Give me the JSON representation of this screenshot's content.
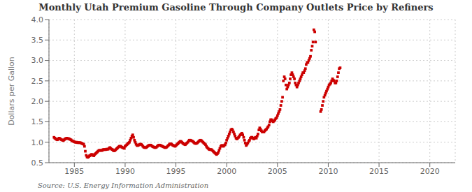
{
  "chart_data": {
    "type": "scatter",
    "title": "Monthly Utah Premium Gasoline Through Company Outlets Price by Refiners",
    "y_label": "Dollars per Gallon",
    "annotations": [
      "Source: U.S. Energy Information Administration"
    ],
    "color": "#CC0000",
    "marker": "square",
    "grid": true,
    "xlim": [
      1982.5,
      2022.5
    ],
    "ylim": [
      0.5,
      4.0
    ],
    "xticks": [
      1985,
      1990,
      1995,
      2000,
      2005,
      2010,
      2015,
      2020
    ],
    "yticks": [
      0.5,
      {
        "value": 1.0,
        "label": "1.0"
      },
      1.5,
      {
        "value": 2.0,
        "label": "2.0"
      },
      2.5,
      {
        "value": 3.0,
        "label": "3.0"
      },
      3.5,
      {
        "value": 4.0,
        "label": "4.0"
      }
    ],
    "x": [
      1983.0,
      1983.08,
      1983.17,
      1983.25,
      1983.33,
      1983.42,
      1983.5,
      1983.58,
      1983.67,
      1983.75,
      1983.83,
      1983.92,
      1984.0,
      1984.08,
      1984.17,
      1984.25,
      1984.33,
      1984.42,
      1984.5,
      1984.58,
      1984.67,
      1984.75,
      1984.83,
      1984.92,
      1985.0,
      1985.08,
      1985.17,
      1985.25,
      1985.33,
      1985.42,
      1985.5,
      1985.58,
      1985.67,
      1985.75,
      1985.83,
      1985.92,
      1986.0,
      1986.08,
      1986.17,
      1986.25,
      1986.33,
      1986.42,
      1986.5,
      1986.58,
      1986.67,
      1986.75,
      1986.83,
      1986.92,
      1987.0,
      1987.08,
      1987.17,
      1987.25,
      1987.33,
      1987.42,
      1987.5,
      1987.58,
      1987.67,
      1987.75,
      1987.83,
      1987.92,
      1988.0,
      1988.08,
      1988.17,
      1988.25,
      1988.33,
      1988.42,
      1988.5,
      1988.58,
      1988.67,
      1988.75,
      1988.83,
      1988.92,
      1989.0,
      1989.08,
      1989.17,
      1989.25,
      1989.33,
      1989.42,
      1989.5,
      1989.58,
      1989.67,
      1989.75,
      1989.83,
      1989.92,
      1990.0,
      1990.08,
      1990.17,
      1990.25,
      1990.33,
      1990.42,
      1990.5,
      1990.58,
      1990.67,
      1990.75,
      1990.83,
      1990.92,
      1991.0,
      1991.08,
      1991.17,
      1991.25,
      1991.33,
      1991.42,
      1991.5,
      1991.58,
      1991.67,
      1991.75,
      1991.83,
      1991.92,
      1992.0,
      1992.08,
      1992.17,
      1992.25,
      1992.33,
      1992.42,
      1992.5,
      1992.58,
      1992.67,
      1992.75,
      1992.83,
      1992.92,
      1993.0,
      1993.08,
      1993.17,
      1993.25,
      1993.33,
      1993.42,
      1993.5,
      1993.58,
      1993.67,
      1993.75,
      1993.83,
      1993.92,
      1994.0,
      1994.08,
      1994.17,
      1994.25,
      1994.33,
      1994.42,
      1994.5,
      1994.58,
      1994.67,
      1994.75,
      1994.83,
      1994.92,
      1995.0,
      1995.08,
      1995.17,
      1995.25,
      1995.33,
      1995.42,
      1995.5,
      1995.58,
      1995.67,
      1995.75,
      1995.83,
      1995.92,
      1996.0,
      1996.08,
      1996.17,
      1996.25,
      1996.33,
      1996.42,
      1996.5,
      1996.58,
      1996.67,
      1996.75,
      1996.83,
      1996.92,
      1997.0,
      1997.08,
      1997.17,
      1997.25,
      1997.33,
      1997.42,
      1997.5,
      1997.58,
      1997.67,
      1997.75,
      1997.83,
      1997.92,
      1998.0,
      1998.08,
      1998.17,
      1998.25,
      1998.33,
      1998.42,
      1998.5,
      1998.58,
      1998.67,
      1998.75,
      1998.83,
      1998.92,
      1999.0,
      1999.08,
      1999.17,
      1999.25,
      1999.33,
      1999.42,
      1999.5,
      1999.58,
      1999.67,
      1999.75,
      1999.83,
      1999.92,
      2000.0,
      2000.08,
      2000.17,
      2000.25,
      2000.33,
      2000.42,
      2000.5,
      2000.58,
      2000.67,
      2000.75,
      2000.83,
      2000.92,
      2001.0,
      2001.08,
      2001.17,
      2001.25,
      2001.33,
      2001.42,
      2001.5,
      2001.58,
      2001.67,
      2001.75,
      2001.83,
      2001.92,
      2002.0,
      2002.08,
      2002.17,
      2002.25,
      2002.33,
      2002.42,
      2002.5,
      2002.58,
      2002.67,
      2002.75,
      2002.83,
      2002.92,
      2003.0,
      2003.08,
      2003.17,
      2003.25,
      2003.33,
      2003.42,
      2003.5,
      2003.58,
      2003.67,
      2003.75,
      2003.83,
      2003.92,
      2004.0,
      2004.08,
      2004.17,
      2004.25,
      2004.33,
      2004.42,
      2004.5,
      2004.58,
      2004.67,
      2004.75,
      2004.83,
      2004.92,
      2005.0,
      2005.08,
      2005.17,
      2005.25,
      2005.33,
      2005.42,
      2005.5,
      2005.58,
      2005.67,
      2005.75,
      2005.83,
      2005.92,
      2006.0,
      2006.08,
      2006.17,
      2006.25,
      2006.33,
      2006.42,
      2006.5,
      2006.58,
      2006.67,
      2006.75,
      2006.83,
      2006.92,
      2007.0,
      2007.08,
      2007.17,
      2007.25,
      2007.33,
      2007.42,
      2007.5,
      2007.58,
      2007.67,
      2007.75,
      2007.83,
      2007.92,
      2008.0,
      2008.08,
      2008.17,
      2008.25,
      2008.33,
      2008.42,
      2008.5,
      2008.58,
      2008.67,
      2008.75,
      2009.25,
      2009.33,
      2009.42,
      2009.5,
      2009.58,
      2009.67,
      2009.75,
      2009.83,
      2009.92,
      2010.0,
      2010.08,
      2010.17,
      2010.25,
      2010.33,
      2010.42,
      2010.5,
      2010.58,
      2010.67,
      2010.75,
      2010.83,
      2010.92,
      2011.0,
      2011.08,
      2011.17
    ],
    "values": [
      1.12,
      1.1,
      1.08,
      1.07,
      1.06,
      1.08,
      1.1,
      1.09,
      1.07,
      1.06,
      1.05,
      1.04,
      1.06,
      1.08,
      1.09,
      1.1,
      1.09,
      1.09,
      1.08,
      1.07,
      1.06,
      1.04,
      1.03,
      1.02,
      1.01,
      1.0,
      1.0,
      1.0,
      0.99,
      0.99,
      0.99,
      0.99,
      0.98,
      0.97,
      0.96,
      0.95,
      0.9,
      0.78,
      0.68,
      0.64,
      0.63,
      0.65,
      0.67,
      0.68,
      0.7,
      0.7,
      0.68,
      0.67,
      0.7,
      0.72,
      0.74,
      0.76,
      0.78,
      0.8,
      0.8,
      0.8,
      0.8,
      0.8,
      0.82,
      0.82,
      0.82,
      0.82,
      0.83,
      0.83,
      0.83,
      0.85,
      0.87,
      0.85,
      0.83,
      0.82,
      0.8,
      0.79,
      0.8,
      0.82,
      0.84,
      0.86,
      0.88,
      0.9,
      0.9,
      0.9,
      0.88,
      0.87,
      0.86,
      0.85,
      0.9,
      0.92,
      0.94,
      0.96,
      0.98,
      1.0,
      1.05,
      1.1,
      1.15,
      1.18,
      1.12,
      1.05,
      1.0,
      0.95,
      0.92,
      0.92,
      0.93,
      0.95,
      0.95,
      0.95,
      0.93,
      0.9,
      0.88,
      0.87,
      0.87,
      0.87,
      0.89,
      0.91,
      0.92,
      0.93,
      0.93,
      0.92,
      0.9,
      0.89,
      0.88,
      0.87,
      0.87,
      0.88,
      0.9,
      0.92,
      0.93,
      0.93,
      0.92,
      0.91,
      0.9,
      0.89,
      0.88,
      0.87,
      0.87,
      0.88,
      0.9,
      0.92,
      0.94,
      0.96,
      0.96,
      0.95,
      0.93,
      0.92,
      0.91,
      0.9,
      0.92,
      0.94,
      0.96,
      0.98,
      1.0,
      1.02,
      1.02,
      1.0,
      0.98,
      0.96,
      0.95,
      0.94,
      0.96,
      0.98,
      1.0,
      1.03,
      1.05,
      1.05,
      1.04,
      1.03,
      1.02,
      1.0,
      0.98,
      0.97,
      0.97,
      0.98,
      1.0,
      1.02,
      1.04,
      1.05,
      1.04,
      1.02,
      1.0,
      0.98,
      0.96,
      0.94,
      0.9,
      0.87,
      0.85,
      0.83,
      0.82,
      0.82,
      0.82,
      0.8,
      0.78,
      0.76,
      0.74,
      0.72,
      0.7,
      0.72,
      0.75,
      0.8,
      0.85,
      0.9,
      0.92,
      0.92,
      0.9,
      0.92,
      0.94,
      0.98,
      1.05,
      1.1,
      1.15,
      1.2,
      1.25,
      1.3,
      1.32,
      1.3,
      1.25,
      1.2,
      1.15,
      1.1,
      1.08,
      1.1,
      1.12,
      1.15,
      1.18,
      1.2,
      1.22,
      1.18,
      1.12,
      1.05,
      0.98,
      0.92,
      0.95,
      0.98,
      1.02,
      1.05,
      1.1,
      1.12,
      1.12,
      1.1,
      1.08,
      1.1,
      1.12,
      1.1,
      1.15,
      1.2,
      1.3,
      1.35,
      1.32,
      1.28,
      1.25,
      1.25,
      1.25,
      1.28,
      1.3,
      1.32,
      1.35,
      1.38,
      1.42,
      1.5,
      1.55,
      1.55,
      1.52,
      1.5,
      1.52,
      1.55,
      1.58,
      1.6,
      1.65,
      1.7,
      1.75,
      1.8,
      1.9,
      2.0,
      2.1,
      2.5,
      2.6,
      2.55,
      2.4,
      2.3,
      2.35,
      2.4,
      2.45,
      2.55,
      2.65,
      2.7,
      2.65,
      2.6,
      2.55,
      2.45,
      2.4,
      2.35,
      2.4,
      2.45,
      2.5,
      2.55,
      2.6,
      2.65,
      2.7,
      2.7,
      2.75,
      2.8,
      2.9,
      2.95,
      2.95,
      3.0,
      3.05,
      3.1,
      3.25,
      3.35,
      3.45,
      3.75,
      3.7,
      3.45,
      1.75,
      1.8,
      1.9,
      2.0,
      2.1,
      2.15,
      2.2,
      2.25,
      2.3,
      2.35,
      2.4,
      2.42,
      2.45,
      2.5,
      2.55,
      2.52,
      2.5,
      2.45,
      2.45,
      2.5,
      2.6,
      2.7,
      2.8,
      2.82
    ]
  }
}
